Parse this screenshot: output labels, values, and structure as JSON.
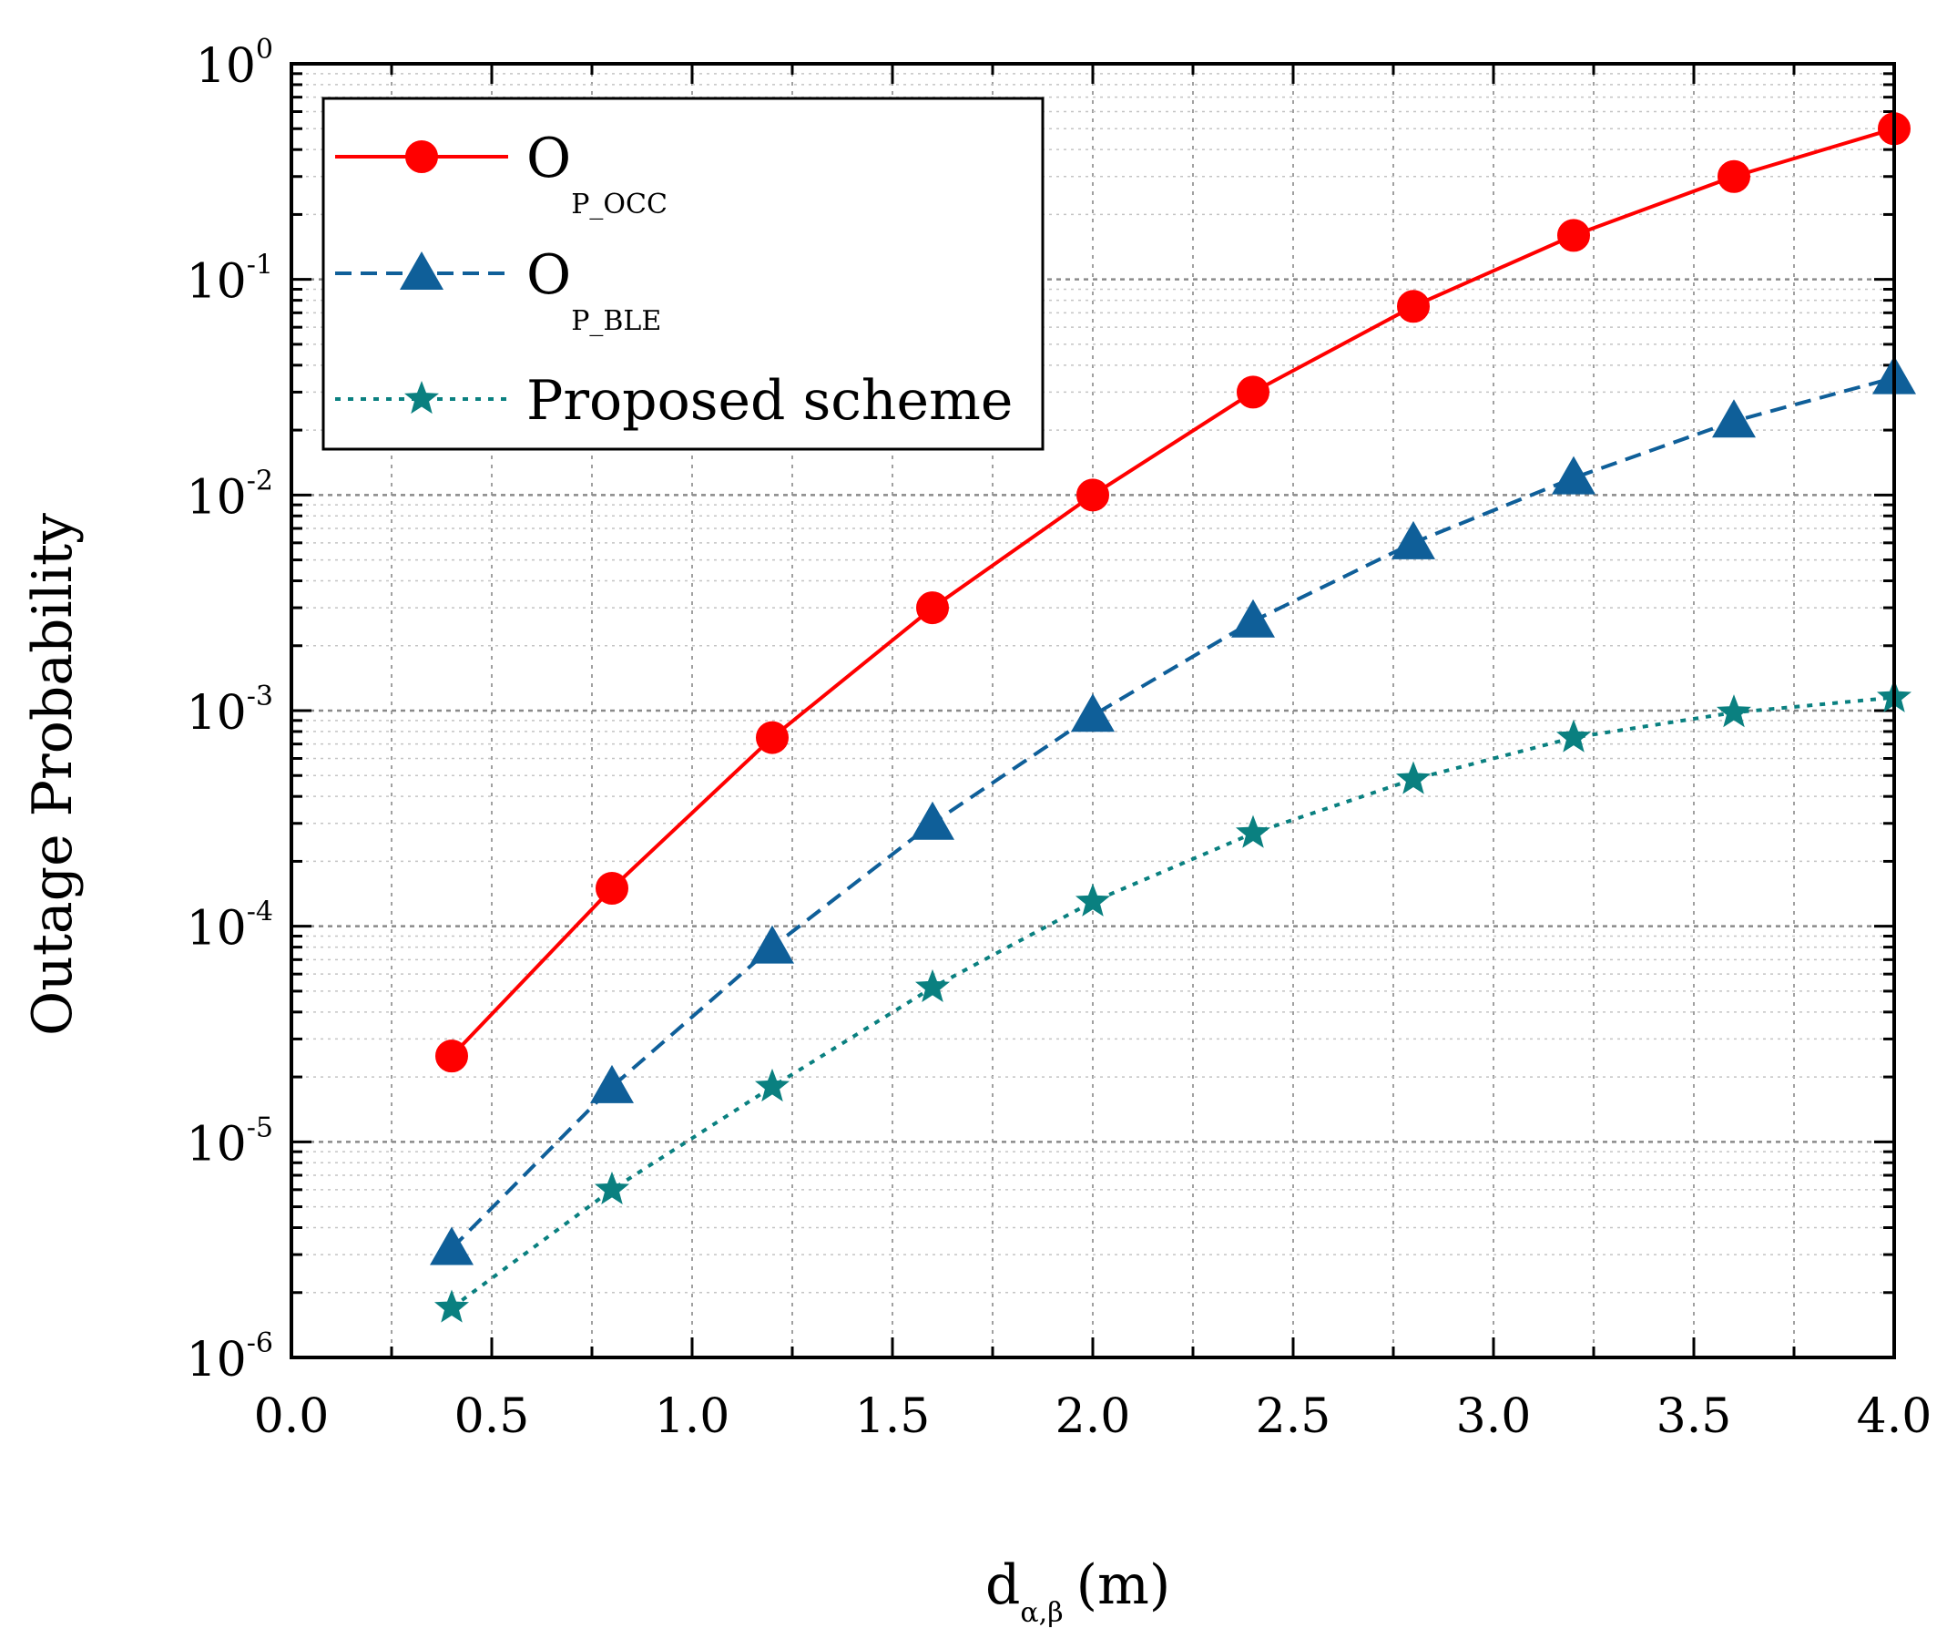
{
  "chart_data": {
    "type": "line",
    "title": "",
    "xlabel": {
      "main": "d",
      "sub": "α,β",
      "unit": "(m)"
    },
    "ylabel": "Outage Probability",
    "xlim": [
      0.0,
      4.0
    ],
    "ylim": [
      1e-06,
      1
    ],
    "yscale": "log",
    "grid": true,
    "x_ticks": [
      "0.0",
      "0.5",
      "1.0",
      "1.5",
      "2.0",
      "2.5",
      "3.0",
      "3.5",
      "4.0"
    ],
    "x_tick_values": [
      0.0,
      0.5,
      1.0,
      1.5,
      2.0,
      2.5,
      3.0,
      3.5,
      4.0
    ],
    "y_ticks": [
      {
        "base": "10",
        "exp": "0",
        "value": 1
      },
      {
        "base": "10",
        "exp": "-1",
        "value": 0.1
      },
      {
        "base": "10",
        "exp": "-2",
        "value": 0.01
      },
      {
        "base": "10",
        "exp": "-3",
        "value": 0.001
      },
      {
        "base": "10",
        "exp": "-4",
        "value": 0.0001
      },
      {
        "base": "10",
        "exp": "-5",
        "value": 1e-05
      },
      {
        "base": "10",
        "exp": "-6",
        "value": 1e-06
      }
    ],
    "x": [
      0.4,
      0.8,
      1.2,
      1.6,
      2.0,
      2.4,
      2.8,
      3.2,
      3.6,
      4.0
    ],
    "legend_position": "top-left",
    "series": [
      {
        "name": "O",
        "sub": "P_OCC",
        "color": "#ff0000",
        "marker": "circle",
        "linestyle": "solid",
        "values": [
          2.5e-05,
          0.00015,
          0.00075,
          0.003,
          0.01,
          0.03,
          0.075,
          0.16,
          0.3,
          0.5
        ]
      },
      {
        "name": "O",
        "sub": "P_BLE",
        "color": "#0f5f99",
        "marker": "triangle",
        "linestyle": "dashed",
        "values": [
          3.2e-06,
          1.8e-05,
          8e-05,
          0.0003,
          0.00095,
          0.0026,
          0.006,
          0.012,
          0.022,
          0.035
        ]
      },
      {
        "name": "Proposed scheme",
        "sub": "",
        "color": "#0a8080",
        "marker": "star",
        "linestyle": "dotted",
        "values": [
          1.7e-06,
          6e-06,
          1.8e-05,
          5.2e-05,
          0.00013,
          0.00027,
          0.00048,
          0.00075,
          0.00098,
          0.00115
        ]
      }
    ]
  }
}
